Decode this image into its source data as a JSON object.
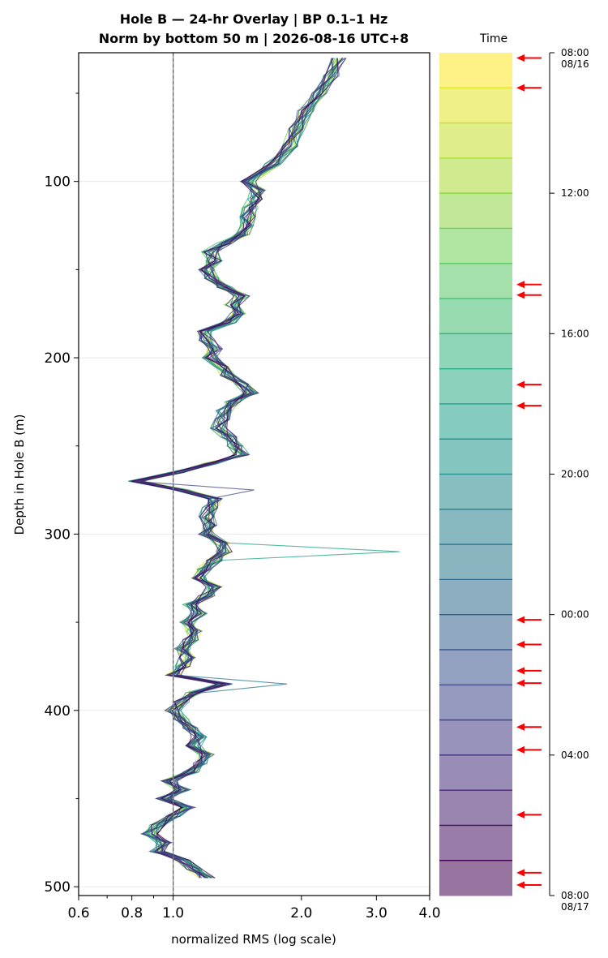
{
  "chart_data": {
    "type": "line",
    "title_line1": "Hole B — 24-hr Overlay  |  BP 0.1–1 Hz",
    "title_line2": "Norm by bottom 50 m  |  2026-08-16 UTC+8",
    "xlabel": "normalized RMS  (log scale)",
    "ylabel": "Depth in Hole B (m)",
    "x_scale": "log",
    "xlim": [
      0.6,
      4.0
    ],
    "ylim": [
      505,
      27
    ],
    "x_ticks": [
      {
        "v": 0.6,
        "label": "0.6"
      },
      {
        "v": 0.8,
        "label": "0.8"
      },
      {
        "v": 1.0,
        "label": "1.0"
      },
      {
        "v": 2.0,
        "label": "2.0"
      },
      {
        "v": 3.0,
        "label": "3.0"
      },
      {
        "v": 4.0,
        "label": "4.0"
      }
    ],
    "y_ticks": [
      {
        "v": 100,
        "label": "100"
      },
      {
        "v": 200,
        "label": "200"
      },
      {
        "v": 300,
        "label": "300"
      },
      {
        "v": 400,
        "label": "400"
      },
      {
        "v": 500,
        "label": "500"
      }
    ],
    "reference_line_x": 1.0,
    "grid": "horizontal",
    "num_series": 24,
    "depth": [
      30,
      40,
      50,
      60,
      70,
      80,
      90,
      100,
      105,
      110,
      115,
      120,
      125,
      130,
      135,
      140,
      145,
      150,
      155,
      160,
      165,
      170,
      175,
      180,
      185,
      190,
      195,
      200,
      205,
      210,
      215,
      220,
      225,
      230,
      235,
      240,
      245,
      250,
      255,
      260,
      265,
      270,
      275,
      280,
      285,
      290,
      295,
      300,
      305,
      310,
      315,
      320,
      325,
      330,
      335,
      340,
      345,
      350,
      355,
      360,
      365,
      370,
      375,
      380,
      385,
      390,
      395,
      400,
      405,
      410,
      415,
      420,
      425,
      430,
      435,
      440,
      445,
      450,
      455,
      460,
      465,
      470,
      475,
      480,
      485,
      490,
      495
    ],
    "base_profile": [
      2.45,
      2.35,
      2.2,
      2.05,
      1.95,
      1.88,
      1.72,
      1.5,
      1.58,
      1.55,
      1.52,
      1.5,
      1.48,
      1.45,
      1.32,
      1.22,
      1.25,
      1.2,
      1.24,
      1.32,
      1.45,
      1.38,
      1.42,
      1.35,
      1.18,
      1.2,
      1.25,
      1.22,
      1.3,
      1.35,
      1.45,
      1.52,
      1.38,
      1.32,
      1.3,
      1.28,
      1.35,
      1.4,
      1.45,
      1.22,
      1.02,
      0.82,
      1.05,
      1.25,
      1.22,
      1.2,
      1.22,
      1.2,
      1.3,
      1.32,
      1.25,
      1.18,
      1.15,
      1.25,
      1.2,
      1.1,
      1.15,
      1.08,
      1.12,
      1.1,
      1.05,
      1.08,
      1.05,
      1.0,
      1.32,
      1.12,
      1.05,
      1.0,
      1.05,
      1.1,
      1.15,
      1.12,
      1.2,
      1.15,
      1.1,
      0.98,
      1.05,
      0.95,
      1.08,
      1.0,
      0.92,
      0.88,
      0.95,
      0.92,
      1.05,
      1.12,
      1.2
    ],
    "spikes": [
      {
        "series": 10,
        "depth": 310,
        "value": 3.4
      },
      {
        "series": 14,
        "depth": 385,
        "value": 1.85
      },
      {
        "series": 18,
        "depth": 275,
        "value": 1.55
      }
    ],
    "colorbar": {
      "label": "Time",
      "ticks": [
        {
          "label": "08:00",
          "sublabel": "08/16"
        },
        {
          "label": "12:00",
          "sublabel": ""
        },
        {
          "label": "16:00",
          "sublabel": ""
        },
        {
          "label": "20:00",
          "sublabel": ""
        },
        {
          "label": "00:00",
          "sublabel": ""
        },
        {
          "label": "04:00",
          "sublabel": ""
        },
        {
          "label": "08:00",
          "sublabel": "08/17"
        }
      ],
      "tick_hours": [
        0,
        4,
        8,
        12,
        16,
        20,
        24
      ],
      "arrow_hours": [
        0.15,
        1.0,
        6.6,
        6.9,
        9.45,
        10.05,
        16.15,
        16.85,
        17.6,
        17.95,
        19.2,
        19.85,
        21.7,
        23.35,
        23.7
      ]
    },
    "colors": {
      "arrow": "#ff0000",
      "ref_line": "#8a8a8a",
      "ref_dash": "#6a3d9a"
    }
  }
}
